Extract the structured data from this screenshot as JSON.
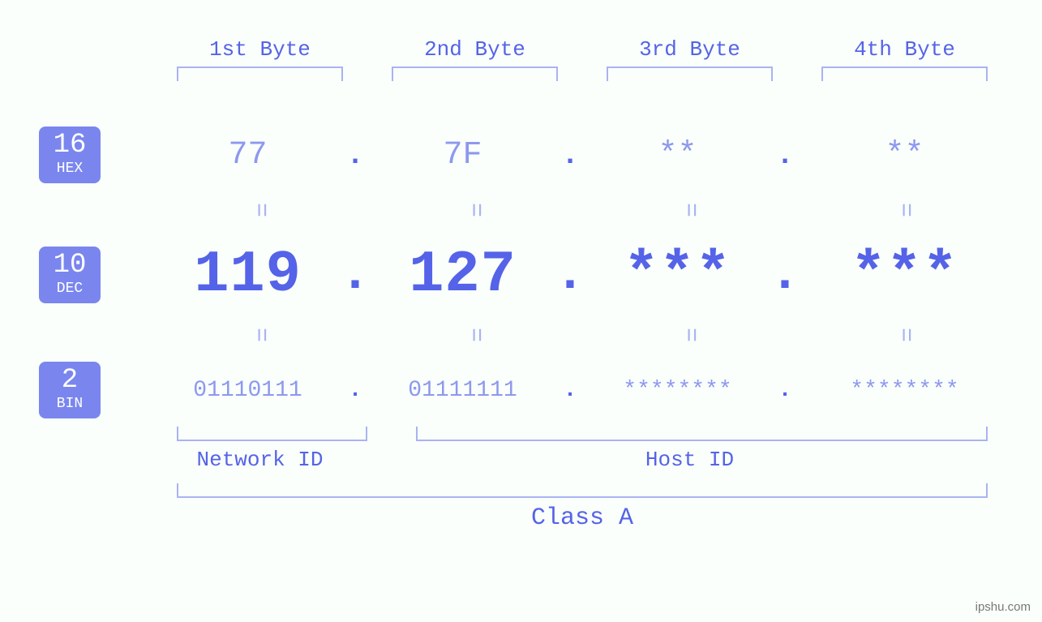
{
  "colors": {
    "background": "#fafffb",
    "primary": "#5563e8",
    "light": "#8d98ef",
    "bracket": "#aab3f2",
    "badge_bg": "#7a86ee",
    "badge_fg": "#ffffff",
    "watermark": "#777777"
  },
  "typography": {
    "font_family": "Courier New, monospace",
    "byte_header_size": 26,
    "hex_size": 40,
    "dec_size": 72,
    "bin_size": 28,
    "badge_num_size": 34,
    "badge_label_size": 18,
    "class_label_size": 30
  },
  "byte_headers": [
    "1st Byte",
    "2nd Byte",
    "3rd Byte",
    "4th Byte"
  ],
  "badges": {
    "hex": {
      "num": "16",
      "label": "HEX"
    },
    "dec": {
      "num": "10",
      "label": "DEC"
    },
    "bin": {
      "num": "2",
      "label": "BIN"
    }
  },
  "hex": {
    "b1": "77",
    "b2": "7F",
    "b3": "**",
    "b4": "**"
  },
  "dec": {
    "b1": "119",
    "b2": "127",
    "b3": "***",
    "b4": "***"
  },
  "bin": {
    "b1": "01110111",
    "b2": "01111111",
    "b3": "********",
    "b4": "********"
  },
  "separators": {
    "dot": "."
  },
  "equals_glyph": "=",
  "labels": {
    "network_id": "Network ID",
    "host_id": "Host ID",
    "class": "Class A"
  },
  "structure": {
    "network_id_bytes": 1,
    "host_id_bytes": 3,
    "ip_class": "A"
  },
  "watermark": "ipshu.com"
}
